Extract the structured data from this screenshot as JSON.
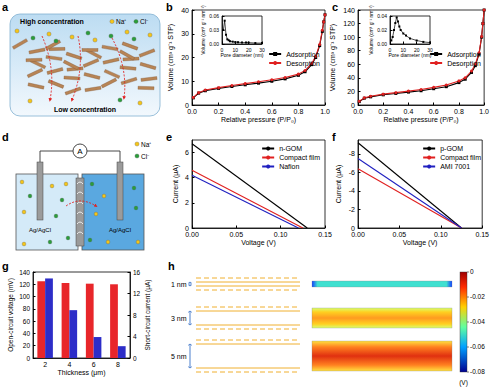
{
  "chart_data": [
    {
      "type": "line",
      "label": "b",
      "x_label": "Relative pressure (P/P₀)",
      "y_label": "Volume (cm³ g⁻¹ STP)",
      "xlim": [
        0,
        1
      ],
      "xticks": [
        {
          "value": 0,
          "label": "0.0"
        },
        0.2,
        0.4,
        0.6,
        0.8,
        {
          "value": 1,
          "label": "1.0"
        }
      ],
      "ylim": [
        0,
        40
      ],
      "yticks": [
        0,
        10,
        20,
        30,
        40
      ],
      "legend": "right",
      "x": [
        0.01,
        0.05,
        0.1,
        0.2,
        0.3,
        0.4,
        0.5,
        0.6,
        0.7,
        0.8,
        0.85,
        0.9,
        0.93,
        0.96,
        0.98,
        0.99,
        1.0
      ],
      "series": [
        {
          "name": "Adsorption",
          "color": "#000000",
          "marker": "square",
          "values": [
            3,
            5,
            6,
            7,
            7.8,
            8.5,
            9.2,
            10,
            11,
            12.5,
            14,
            17,
            20,
            25,
            31,
            35,
            38
          ]
        },
        {
          "name": "Desorption",
          "color": "#e02020",
          "marker": "circle",
          "values": [
            3.2,
            5.2,
            6.3,
            7.3,
            8.2,
            9,
            9.8,
            10.6,
            11.6,
            13,
            14.5,
            17.5,
            20.5,
            25.5,
            31.5,
            35,
            38
          ]
        }
      ],
      "inset": {
        "type": "line",
        "x_label": "Pore diameter (nm)",
        "y_label": "Volume (cm³ g⁻¹ nm⁻¹)",
        "xlim": [
          0,
          30
        ],
        "xticks": [
          0,
          10,
          20,
          30
        ],
        "ylim": [
          0,
          0.06
        ],
        "yticks": [
          {
            "value": 0,
            "label": "0.00"
          },
          {
            "value": 0.03,
            "label": "0.03"
          },
          {
            "value": 0.06,
            "label": "0.06"
          }
        ],
        "x": [
          1,
          2,
          3,
          4,
          5,
          6,
          8,
          10,
          12,
          15,
          18,
          20,
          25,
          30
        ],
        "series": [
          {
            "color": "#000000",
            "marker": "square",
            "values": [
              0.03,
              0.05,
              0.02,
              0.01,
              0.008,
              0.006,
              0.005,
              0.004,
              0.004,
              0.003,
              0.003,
              0.003,
              0.002,
              0.002
            ]
          }
        ]
      }
    },
    {
      "type": "line",
      "label": "c",
      "x_label": "Relative pressure (P/P₀)",
      "y_label": "Volume (cm³ g⁻¹ STP)",
      "xlim": [
        0,
        1
      ],
      "xticks": [
        {
          "value": 0,
          "label": "0.0"
        },
        0.2,
        0.4,
        0.6,
        0.8,
        {
          "value": 1,
          "label": "1.0"
        }
      ],
      "ylim": [
        0,
        140
      ],
      "yticks": [
        0,
        20,
        40,
        60,
        80,
        100,
        120,
        140
      ],
      "legend": "right",
      "x": [
        0.01,
        0.05,
        0.1,
        0.2,
        0.3,
        0.4,
        0.5,
        0.6,
        0.7,
        0.8,
        0.85,
        0.9,
        0.93,
        0.96,
        0.98,
        0.99,
        1.0
      ],
      "series": [
        {
          "name": "Adsorption",
          "color": "#000000",
          "marker": "square",
          "values": [
            5,
            10,
            12,
            15,
            17,
            19,
            21,
            24,
            27,
            33,
            38,
            48,
            58,
            75,
            100,
            120,
            140
          ]
        },
        {
          "name": "Desorption",
          "color": "#e02020",
          "marker": "circle",
          "values": [
            5.5,
            10.5,
            12.8,
            16,
            18.2,
            20.5,
            22.8,
            26,
            29.5,
            35.5,
            40,
            50,
            60,
            77,
            101,
            120,
            140
          ]
        }
      ],
      "inset": {
        "type": "line",
        "x_label": "Pore diameter (nm)",
        "y_label": "Volume (cm³ g⁻¹ nm⁻¹)",
        "xlim": [
          0,
          30
        ],
        "xticks": [
          0,
          10,
          20,
          30
        ],
        "ylim": [
          0,
          0.04
        ],
        "yticks": [
          {
            "value": 0,
            "label": "0.00"
          },
          {
            "value": 0.02,
            "label": "0.02"
          },
          {
            "value": 0.04,
            "label": "0.04"
          }
        ],
        "x": [
          1,
          2,
          3,
          4,
          5,
          6,
          7,
          8,
          10,
          12,
          15,
          20,
          25,
          30
        ],
        "series": [
          {
            "color": "#000000",
            "marker": "square",
            "values": [
              0.005,
              0.01,
              0.02,
              0.03,
              0.038,
              0.032,
              0.025,
              0.02,
              0.015,
              0.012,
              0.008,
              0.005,
              0.003,
              0.002
            ]
          }
        ]
      }
    },
    {
      "type": "line",
      "label": "e",
      "x_label": "Voltage (V)",
      "y_label": "Current (μA)",
      "xlim": [
        0,
        0.15
      ],
      "xticks": [
        {
          "value": 0,
          "label": "0.00"
        },
        0.05,
        {
          "value": 0.1,
          "label": "0.10"
        },
        0.15
      ],
      "ylim": [
        0,
        7
      ],
      "yticks": [
        0,
        2,
        4,
        6
      ],
      "legend": "upper right",
      "line_style": "solid",
      "series": [
        {
          "name": "n-GOM",
          "color": "#000000",
          "x": [
            0,
            0.13
          ],
          "values": [
            6.7,
            0
          ]
        },
        {
          "name": "Compact film",
          "color": "#e02020",
          "x": [
            0,
            0.125
          ],
          "values": [
            4.6,
            0
          ]
        },
        {
          "name": "Nafion",
          "color": "#2020c0",
          "x": [
            0,
            0.12
          ],
          "values": [
            4.2,
            0
          ]
        }
      ]
    },
    {
      "type": "line",
      "label": "f",
      "x_label": "Voltage (V)",
      "y_label": "Current (μA)",
      "xlim": [
        0,
        0.15
      ],
      "xticks": [
        {
          "value": 0,
          "label": "0.00"
        },
        0.05,
        {
          "value": 0.1,
          "label": "0.10"
        },
        0.15
      ],
      "ylim": [
        0,
        -9.5
      ],
      "yticks": [
        0,
        -2,
        -4,
        -6,
        -8
      ],
      "legend": "upper right",
      "line_style": "solid",
      "series": [
        {
          "name": "p-GOM",
          "color": "#000000",
          "x": [
            0,
            0.125
          ],
          "values": [
            -9.2,
            0
          ]
        },
        {
          "name": "Compact film",
          "color": "#e02020",
          "x": [
            0,
            0.125
          ],
          "values": [
            -6.4,
            0
          ]
        },
        {
          "name": "AMI 7001",
          "color": "#2020c0",
          "x": [
            0,
            0.125
          ],
          "values": [
            -7.5,
            0
          ]
        }
      ]
    },
    {
      "type": "bar",
      "label": "g",
      "x_label": "Thickness (μm)",
      "y_label": "Open-circuit voltage (mV)",
      "y2_label": "Short-circuit current (μA)",
      "categories": [
        "2",
        "4",
        "6",
        "8"
      ],
      "ylim": [
        0,
        140
      ],
      "yticks": [
        0,
        20,
        40,
        60,
        80,
        100,
        120,
        140
      ],
      "y2lim": [
        0,
        16
      ],
      "y2ticks": [
        0,
        4,
        8,
        12,
        16
      ],
      "series": [
        {
          "color": "#e8262a",
          "values": [
            125,
            122,
            121,
            120
          ]
        },
        {
          "color": "#2d2dc8",
          "axis": "y2",
          "values": [
            14.8,
            8.9,
            3.9,
            2.2
          ]
        }
      ]
    }
  ],
  "diagrams": {
    "a": {
      "label": "a",
      "top": "High concentration",
      "bottom": "Low concentration",
      "cation": "Na⁺",
      "anion": "Cl⁻"
    },
    "d": {
      "label": "d",
      "meter": "A",
      "electrode": "Ag/AgCl",
      "cation": "Na⁺",
      "anion": "Cl⁻"
    },
    "h": {
      "label": "h",
      "channels": [
        "1 nm",
        "3 nm",
        "5 nm"
      ],
      "colorbar": {
        "range": [
          0,
          -0.08
        ],
        "ticks": [
          0,
          -0.02,
          -0.04,
          -0.06,
          -0.08
        ],
        "unit": "(V)"
      }
    }
  }
}
